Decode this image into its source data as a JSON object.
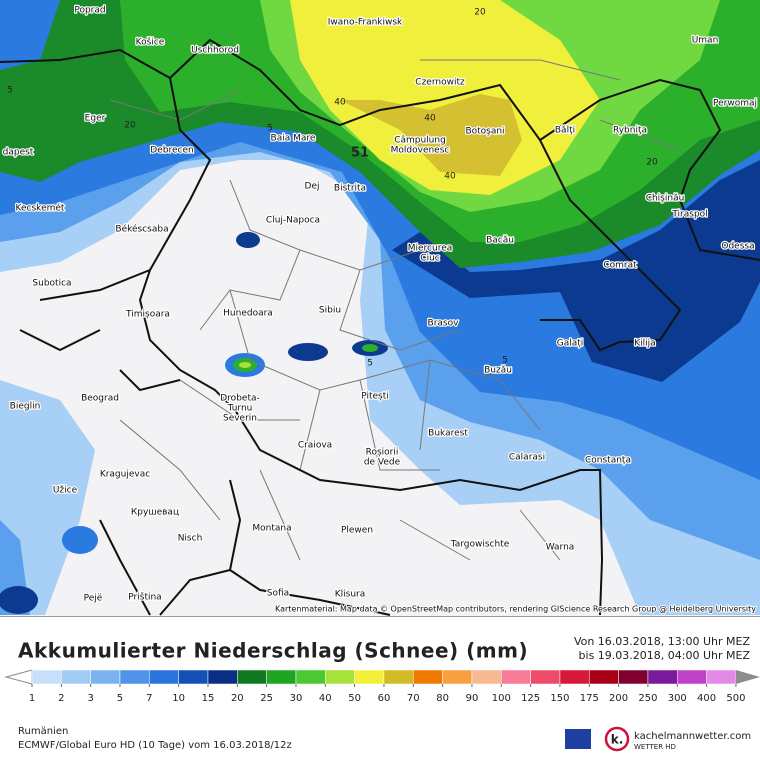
{
  "map": {
    "cities": [
      [
        "Poprad"
      ],
      [
        "Košice"
      ],
      [
        "Uschhorod"
      ],
      [
        "Iwano-Frankiwsk"
      ],
      [
        "Uman"
      ],
      [
        "Czernowitz"
      ],
      [
        "Eger"
      ],
      [
        "Baia Mare"
      ],
      [
        "Câmpulung",
        "Moldovenesc"
      ],
      [
        "Botoşani"
      ],
      [
        "Bălţi"
      ],
      [
        "Rybniţa"
      ],
      [
        "Perwomaj"
      ],
      [
        "dapest"
      ],
      [
        "Debrecen"
      ],
      [
        "Dej"
      ],
      [
        "Bistrita"
      ],
      [
        "Chişinău"
      ],
      [
        "Tiraspol"
      ],
      [
        "Kecskemét"
      ],
      [
        "Cluj-Napoca"
      ],
      [
        "Békéscsaba"
      ],
      [
        "Odessa"
      ],
      [
        "Miercurea",
        "Ciuc"
      ],
      [
        "Bacău"
      ],
      [
        "Comrat"
      ],
      [
        "Subotica"
      ],
      [
        "Timișoara"
      ],
      [
        "Hunedoara"
      ],
      [
        "Sibiu"
      ],
      [
        "Brasov"
      ],
      [
        "Galați"
      ],
      [
        "Kilija"
      ],
      [
        "Buzău"
      ],
      [
        "Beograd"
      ],
      [
        "Bieglin"
      ],
      [
        "Drobeta-",
        "Turnu",
        "Severin"
      ],
      [
        "Pitești"
      ],
      [
        "Craiova"
      ],
      [
        "Bukarest"
      ],
      [
        "Calarasi"
      ],
      [
        "Constanța"
      ],
      [
        "Roșiorii",
        "de Vede"
      ],
      [
        "Kragujevac"
      ],
      [
        "Užice"
      ],
      [
        "Крушевац"
      ],
      [
        "Nisch"
      ],
      [
        "Montana"
      ],
      [
        "Plewen"
      ],
      [
        "Targowischte"
      ],
      [
        "Warna"
      ],
      [
        "Sofia"
      ],
      [
        "Klisura"
      ],
      [
        "Pejë"
      ],
      [
        "Priština"
      ]
    ],
    "contour_labels": [
      "5",
      "20",
      "40",
      "40",
      "40",
      "20",
      "5",
      "51",
      "5",
      "5",
      "20"
    ],
    "attribution": "Kartenmaterial: Map data © OpenStreetMap contributors, rendering GIScience Research Group @ Heidelberg University"
  },
  "legend": {
    "title": "Akkumulierter Niederschlag (Schnee) (mm)",
    "period_from": "Von 16.03.2018, 13:00 Uhr MEZ",
    "period_to": "bis 19.03.2018, 04:00 Uhr MEZ",
    "ticks": [
      1,
      2,
      3,
      5,
      7,
      10,
      15,
      20,
      25,
      30,
      40,
      50,
      60,
      70,
      80,
      90,
      100,
      125,
      150,
      175,
      200,
      250,
      300,
      400,
      500
    ],
    "below_color": "#ffffff",
    "above_color": "#8c8c8c",
    "colors": [
      "#c6e0fa",
      "#a2cbf4",
      "#7ab3ef",
      "#4f94ea",
      "#2a74dc",
      "#1450b8",
      "#0a2f86",
      "#107a22",
      "#1fa51f",
      "#4cc832",
      "#a6e23a",
      "#f4f03a",
      "#d2bc26",
      "#f07a00",
      "#f8a040",
      "#f8b890",
      "#f87c98",
      "#ee4c6a",
      "#d81838",
      "#a80018",
      "#820030",
      "#7a1a9a",
      "#c040c8",
      "#e28ae6",
      "#f4c8f4"
    ],
    "extra_colors": [
      "#ffffff",
      "#d2d2d2"
    ]
  },
  "footer": {
    "region": "Rumänien",
    "model": "ECMWF/Global Euro HD (10 Tage) vom 16.03.2018/12z",
    "brand": "kachelmannwetter.com",
    "brand_sub": "WETTER HD"
  }
}
